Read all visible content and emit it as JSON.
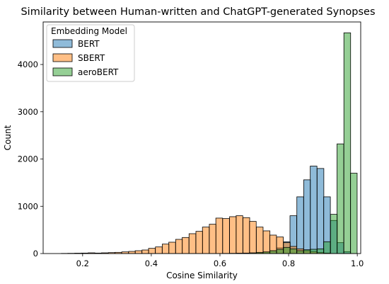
{
  "chart_data": {
    "type": "bar",
    "subtype": "histogram",
    "title": "Similarity between Human-written and ChatGPT-generated Synopses",
    "xlabel": "Cosine Similarity",
    "ylabel": "Count",
    "xlim": [
      0.085,
      1.01
    ],
    "ylim": [
      0,
      4900
    ],
    "xticks": [
      0.2,
      0.4,
      0.6,
      0.8,
      1.0
    ],
    "xtick_labels": [
      "0.2",
      "0.4",
      "0.6",
      "0.8",
      "1.0"
    ],
    "yticks": [
      0,
      1000,
      2000,
      3000,
      4000
    ],
    "ytick_labels": [
      "0",
      "1000",
      "2000",
      "3000",
      "4000"
    ],
    "bin_width": 0.0196,
    "legend": {
      "title": "Embedding Model",
      "position": "top-left"
    },
    "grid": false,
    "series": [
      {
        "name": "BERT",
        "color": "#1f77b4",
        "bins": [
          [
            0.706,
            10
          ],
          [
            0.726,
            30
          ],
          [
            0.746,
            60
          ],
          [
            0.765,
            120
          ],
          [
            0.785,
            250
          ],
          [
            0.804,
            800
          ],
          [
            0.824,
            1200
          ],
          [
            0.844,
            1560
          ],
          [
            0.863,
            1850
          ],
          [
            0.883,
            1800
          ],
          [
            0.902,
            1200
          ],
          [
            0.922,
            700
          ],
          [
            0.941,
            230
          ],
          [
            0.961,
            40
          ]
        ]
      },
      {
        "name": "SBERT",
        "color": "#ff7f0e",
        "bins": [
          [
            0.138,
            3
          ],
          [
            0.157,
            5
          ],
          [
            0.177,
            8
          ],
          [
            0.196,
            10
          ],
          [
            0.216,
            15
          ],
          [
            0.235,
            10
          ],
          [
            0.255,
            15
          ],
          [
            0.275,
            20
          ],
          [
            0.294,
            25
          ],
          [
            0.314,
            35
          ],
          [
            0.334,
            45
          ],
          [
            0.353,
            60
          ],
          [
            0.373,
            75
          ],
          [
            0.392,
            110
          ],
          [
            0.412,
            140
          ],
          [
            0.432,
            200
          ],
          [
            0.451,
            240
          ],
          [
            0.471,
            300
          ],
          [
            0.49,
            340
          ],
          [
            0.51,
            420
          ],
          [
            0.53,
            470
          ],
          [
            0.549,
            560
          ],
          [
            0.569,
            620
          ],
          [
            0.588,
            750
          ],
          [
            0.608,
            740
          ],
          [
            0.628,
            780
          ],
          [
            0.647,
            800
          ],
          [
            0.667,
            760
          ],
          [
            0.686,
            680
          ],
          [
            0.706,
            560
          ],
          [
            0.726,
            480
          ],
          [
            0.745,
            390
          ],
          [
            0.765,
            350
          ],
          [
            0.785,
            230
          ],
          [
            0.804,
            150
          ],
          [
            0.824,
            100
          ],
          [
            0.844,
            60
          ],
          [
            0.863,
            40
          ],
          [
            0.883,
            20
          ],
          [
            0.902,
            10
          ]
        ]
      },
      {
        "name": "aeroBERT",
        "color": "#2ca02c",
        "bins": [
          [
            0.608,
            3
          ],
          [
            0.628,
            5
          ],
          [
            0.647,
            8
          ],
          [
            0.667,
            10
          ],
          [
            0.686,
            15
          ],
          [
            0.706,
            25
          ],
          [
            0.726,
            35
          ],
          [
            0.745,
            60
          ],
          [
            0.765,
            90
          ],
          [
            0.785,
            130
          ],
          [
            0.804,
            100
          ],
          [
            0.824,
            60
          ],
          [
            0.844,
            80
          ],
          [
            0.863,
            90
          ],
          [
            0.883,
            100
          ],
          [
            0.902,
            250
          ],
          [
            0.922,
            830
          ],
          [
            0.941,
            2320
          ],
          [
            0.961,
            4670
          ],
          [
            0.98,
            1700
          ]
        ]
      }
    ]
  }
}
